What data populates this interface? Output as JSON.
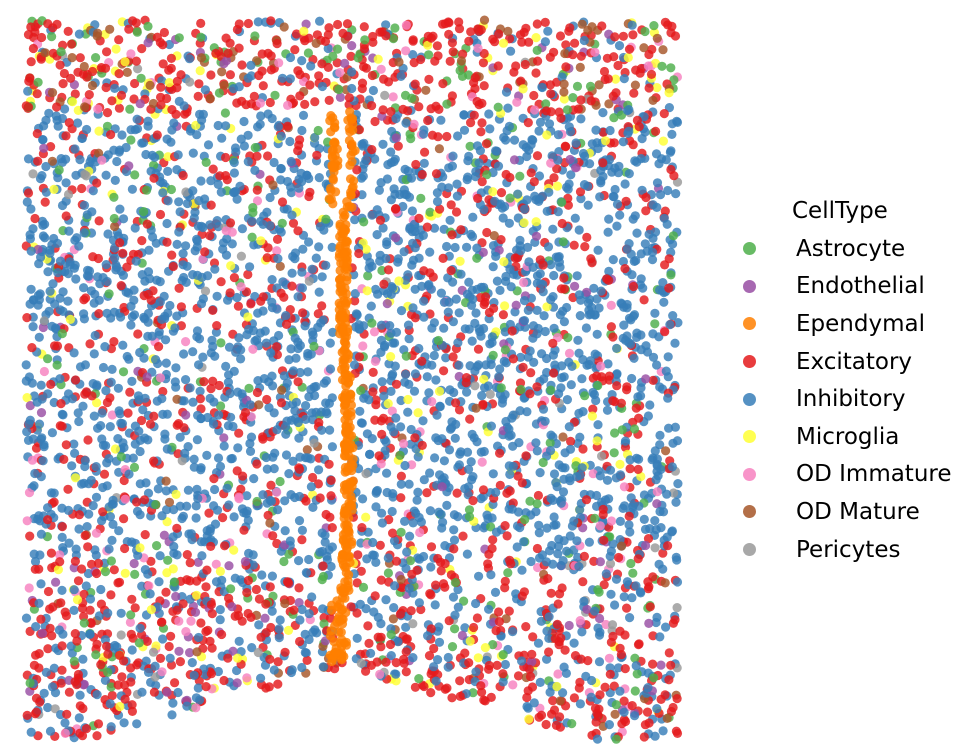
{
  "chart_data": {
    "type": "scatter",
    "title": "",
    "xlabel": "",
    "ylabel": "",
    "axes_visible": false,
    "grid": false,
    "legend_placement": "right",
    "legend_title": "CellType",
    "categories": [
      {
        "name": "Astrocyte",
        "color": "#4daf4a",
        "share": 0.07
      },
      {
        "name": "Endothelial",
        "color": "#984ea3",
        "share": 0.025
      },
      {
        "name": "Ependymal",
        "color": "#ff7f00",
        "share": 0.05
      },
      {
        "name": "Excitatory",
        "color": "#e41a1c",
        "share": 0.31
      },
      {
        "name": "Inhibitory",
        "color": "#377eb8",
        "share": 0.44
      },
      {
        "name": "Microglia",
        "color": "#ffff33",
        "share": 0.03
      },
      {
        "name": "OD Immature",
        "color": "#f781bf",
        "share": 0.03
      },
      {
        "name": "OD Mature",
        "color": "#a65628",
        "share": 0.035
      },
      {
        "name": "Pericytes",
        "color": "#999999",
        "share": 0.01
      }
    ]
  }
}
